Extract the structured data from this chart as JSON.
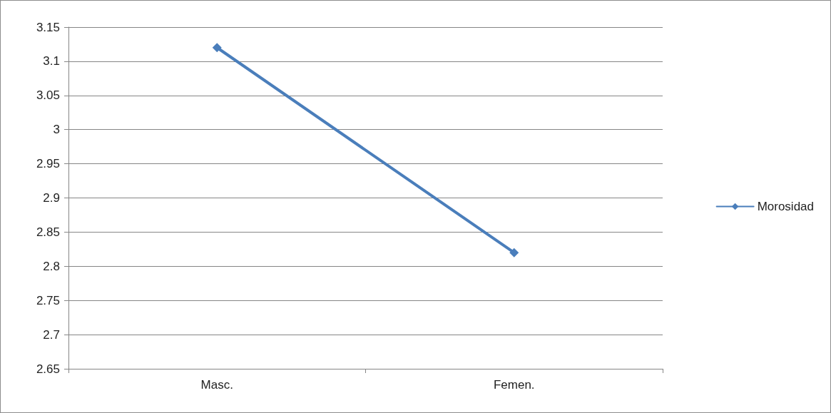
{
  "chart_data": {
    "type": "line",
    "categories": [
      "Masc.",
      "Femen."
    ],
    "series": [
      {
        "name": "Morosidad",
        "color": "#4a7ebb",
        "values": [
          3.12,
          2.82
        ]
      }
    ],
    "ylim": [
      2.65,
      3.15
    ],
    "yticks": [
      2.65,
      2.7,
      2.75,
      2.8,
      2.85,
      2.9,
      2.95,
      3,
      3.05,
      3.1,
      3.15
    ],
    "grid": "y",
    "legend": "right",
    "marker": "diamond",
    "line_style": "solid"
  }
}
